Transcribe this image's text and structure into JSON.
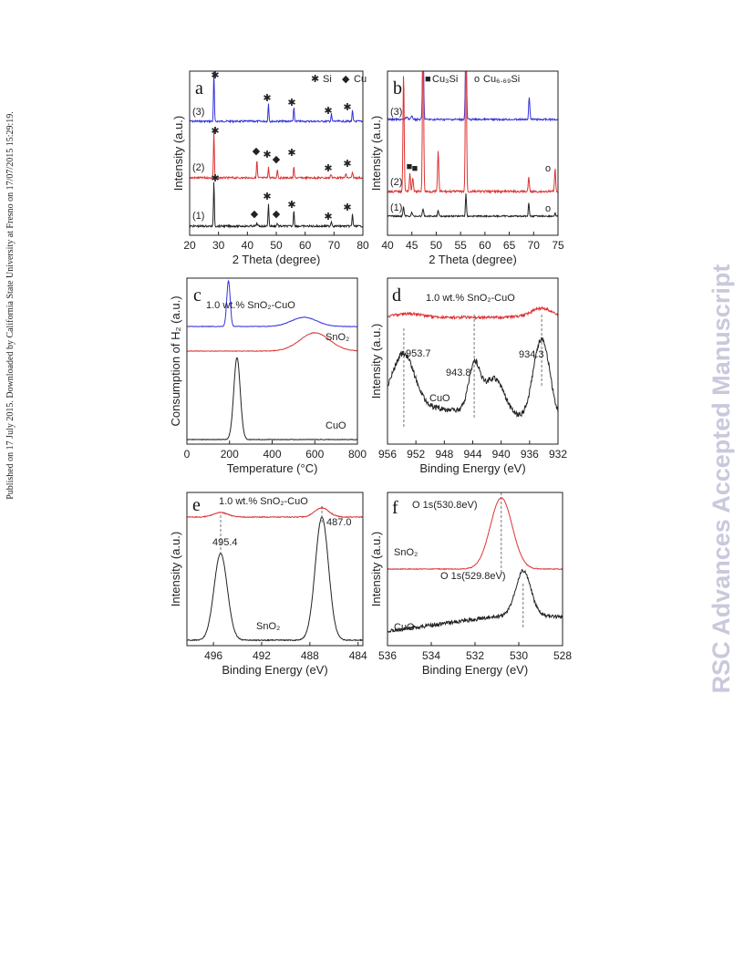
{
  "side_note": "Published on 17 July 2015. Downloaded by California State University at Fresno on 17/07/2015 15:29:19.",
  "watermark": "RSC Advances Accepted Manuscript",
  "panels": [
    {
      "letter": "a",
      "x_label": "2 Theta (degree)",
      "y_label": "Intensity (a.u.)",
      "x_ticks": [
        "20",
        "30",
        "40",
        "50",
        "60",
        "70",
        "80"
      ],
      "legend": [
        "Si",
        "Cu"
      ],
      "annotations": [
        "(3)",
        "(2)",
        "(1)"
      ]
    },
    {
      "letter": "b",
      "x_label": "2 Theta (degree)",
      "y_label": "Intensity (a.u.)",
      "x_ticks": [
        "40",
        "45",
        "50",
        "55",
        "60",
        "65",
        "70",
        "75"
      ],
      "legend": [
        "Cu₃Si",
        "Cu₆.₆₉Si"
      ],
      "annotations": [
        "(3)",
        "(2)",
        "(1)"
      ]
    },
    {
      "letter": "c",
      "x_label": "Temperature (°C)",
      "y_label": "Consumption of H₂ (a.u.)",
      "x_ticks": [
        "0",
        "200",
        "400",
        "600",
        "800"
      ],
      "annotations": [
        "1.0 wt.% SnO₂-CuO",
        "SnO₂",
        "CuO"
      ]
    },
    {
      "letter": "d",
      "x_label": "Binding Energy (eV)",
      "y_label": "Intensity (a.u.)",
      "x_ticks": [
        "956",
        "952",
        "948",
        "944",
        "940",
        "936",
        "932"
      ],
      "annotations": [
        "1.0 wt.% SnO₂-CuO",
        "953.7",
        "943.8",
        "934.3",
        "CuO"
      ]
    },
    {
      "letter": "e",
      "x_label": "Binding Energy (eV)",
      "y_label": "Intensity (a.u.)",
      "x_ticks": [
        "496",
        "492",
        "488",
        "484"
      ],
      "annotations": [
        "1.0 wt.% SnO₂-CuO",
        "495.4",
        "487.0",
        "SnO₂"
      ]
    },
    {
      "letter": "f",
      "x_label": "Binding Energy (eV)",
      "y_label": "Intensity (a.u.)",
      "x_ticks": [
        "536",
        "534",
        "532",
        "530",
        "528"
      ],
      "annotations": [
        "O 1s(530.8eV)",
        "SnO₂",
        "O 1s(529.8eV)",
        "CuO"
      ]
    }
  ]
}
